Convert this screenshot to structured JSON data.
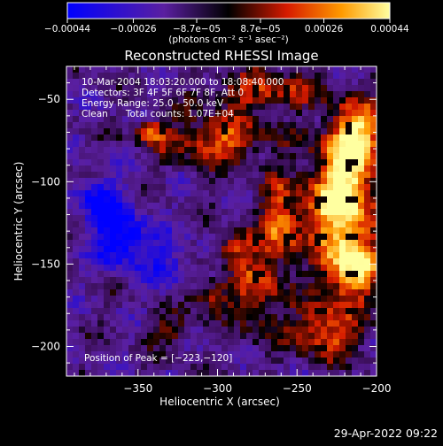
{
  "chart_data": {
    "type": "heatmap",
    "title": "Reconstructed RHESSI Image",
    "xlabel": "Heliocentric X (arcsec)",
    "ylabel": "Heliocentric Y (arcsec)",
    "xlim": [
      -395,
      -200
    ],
    "ylim": [
      -218,
      -30
    ],
    "xticks": [
      -350,
      -300,
      -250,
      -200
    ],
    "xtick_labels": [
      "−350",
      "−300",
      "−250",
      "−200"
    ],
    "yticks": [
      -50,
      -100,
      -150,
      -200
    ],
    "ytick_labels": [
      "−50",
      "−100",
      "−150",
      "−200"
    ],
    "colorbar": {
      "range": [
        -0.00044,
        0.00044
      ],
      "ticks": [
        -0.00044,
        -0.00026,
        -8.7e-05,
        8.7e-05,
        0.00026,
        0.00044
      ],
      "tick_labels": [
        "−0.00044",
        "−0.00026",
        "−8.7e−05",
        "8.7e−05",
        "0.00026",
        "0.00044"
      ],
      "unit_label": "(photons cm⁻² s⁻¹ asec⁻²)",
      "colors": [
        "#0000ff",
        "#5a1fa0",
        "#000000",
        "#d61a00",
        "#ff9a00",
        "#ffffa0"
      ]
    },
    "peak": {
      "x": -223,
      "y": -120
    },
    "blobs": [
      {
        "x": -222,
        "y": -110,
        "amp": 1.0,
        "sx": 14,
        "sy": 22
      },
      {
        "x": -215,
        "y": -152,
        "amp": 0.8,
        "sx": 13,
        "sy": 13
      },
      {
        "x": -212,
        "y": -72,
        "amp": 0.75,
        "sx": 12,
        "sy": 14
      },
      {
        "x": -232,
        "y": -190,
        "amp": 0.55,
        "sx": 16,
        "sy": 12
      },
      {
        "x": -300,
        "y": -75,
        "amp": 0.55,
        "sx": 22,
        "sy": 10
      },
      {
        "x": -342,
        "y": -70,
        "amp": 0.5,
        "sx": 7,
        "sy": 5
      },
      {
        "x": -290,
        "y": -140,
        "amp": 0.5,
        "sx": 7,
        "sy": 6
      },
      {
        "x": -260,
        "y": -125,
        "amp": 0.6,
        "sx": 9,
        "sy": 18
      },
      {
        "x": -270,
        "y": -45,
        "amp": 0.45,
        "sx": 25,
        "sy": 8
      },
      {
        "x": -275,
        "y": -165,
        "amp": 0.45,
        "sx": 10,
        "sy": 18
      },
      {
        "x": -330,
        "y": -190,
        "amp": 0.35,
        "sx": 8,
        "sy": 6
      },
      {
        "x": -305,
        "y": -170,
        "amp": 0.4,
        "sx": 10,
        "sy": 7
      },
      {
        "x": -360,
        "y": -135,
        "amp": -0.6,
        "sx": 12,
        "sy": 12
      },
      {
        "x": -375,
        "y": -110,
        "amp": -0.45,
        "sx": 10,
        "sy": 10
      },
      {
        "x": -330,
        "y": -150,
        "amp": -0.3,
        "sx": 10,
        "sy": 12
      }
    ]
  },
  "header": {
    "time_range": "10-Mar-2004 18:03:20.000 to 18:08:40.000",
    "detectors": "Detectors: 3F 4F 5F 6F 7F 8F, Att 0",
    "energy": "Energy Range: 25.0 - 50.0 keV",
    "clean": "Clean      Total counts: 1.07E+04"
  },
  "peak_label": "Position of Peak = [−223,−120]",
  "footer_date": "29-Apr-2022 09:22"
}
